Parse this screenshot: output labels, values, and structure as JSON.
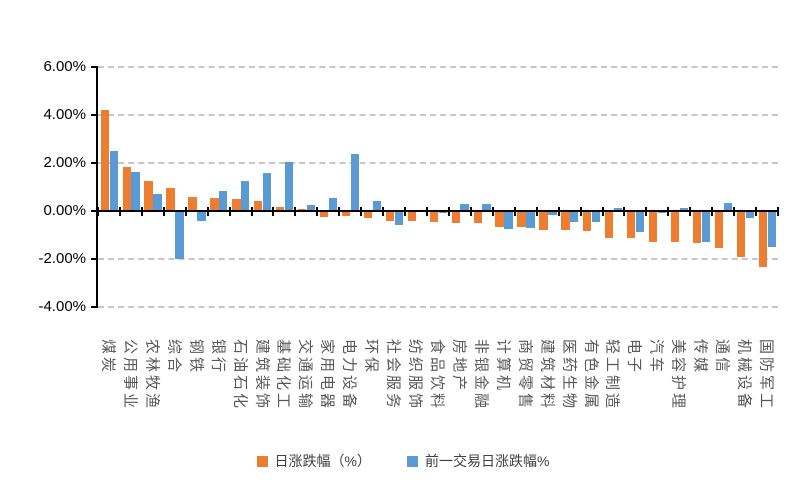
{
  "chart_data": {
    "type": "bar",
    "title": "",
    "xlabel": "",
    "ylabel": "",
    "ylim": [
      -4,
      6
    ],
    "grid": "horizontal-dashed",
    "legend_position": "bottom",
    "ytick_labels": [
      "6.00%",
      "4.00%",
      "2.00%",
      "0.00%",
      "-2.00%",
      "-4.00%"
    ],
    "ytick_values": [
      6,
      4,
      2,
      0,
      -2,
      -4
    ],
    "categories": [
      "煤炭",
      "公用事业",
      "农林牧渔",
      "综合",
      "钢铁",
      "银行",
      "石油石化",
      "建筑装饰",
      "基础化工",
      "交通运输",
      "家用电器",
      "电力设备",
      "环保",
      "社会服务",
      "纺织服饰",
      "食品饮料",
      "房地产",
      "非银金融",
      "计算机",
      "商贸零售",
      "建筑材料",
      "医药生物",
      "有色金属",
      "轻工制造",
      "电子",
      "汽车",
      "美容护理",
      "传媒",
      "通信",
      "机械设备",
      "国防军工"
    ],
    "series": [
      {
        "name": "日涨跌幅（%）",
        "color": "#ED7D31",
        "values": [
          4.21,
          1.85,
          1.26,
          0.97,
          0.6,
          0.55,
          0.48,
          0.42,
          0.17,
          0.08,
          -0.25,
          -0.2,
          -0.3,
          -0.42,
          -0.43,
          -0.46,
          -0.5,
          -0.5,
          -0.65,
          -0.66,
          -0.8,
          -0.8,
          -0.82,
          -1.12,
          -1.14,
          -1.28,
          -1.3,
          -1.35,
          -1.55,
          -1.93,
          -2.35
        ]
      },
      {
        "name": "前一交易日涨跌幅%",
        "color": "#5B9BD5",
        "values": [
          2.5,
          1.61,
          0.69,
          -2.0,
          -0.42,
          0.83,
          1.25,
          1.6,
          2.05,
          0.25,
          0.55,
          2.36,
          0.42,
          -0.58,
          -0.03,
          -0.08,
          0.28,
          0.28,
          -0.75,
          -0.7,
          -0.17,
          -0.45,
          -0.45,
          0.11,
          -0.89,
          -0.1,
          0.12,
          -1.28,
          0.35,
          -0.3,
          -1.49
        ]
      }
    ]
  },
  "colors": {
    "background": "#ffffff",
    "gridline": "#c6c6c6",
    "axis": "#000000",
    "x_label_text": "#595959",
    "y_label_text": "#000000",
    "legend_text": "#404040"
  }
}
